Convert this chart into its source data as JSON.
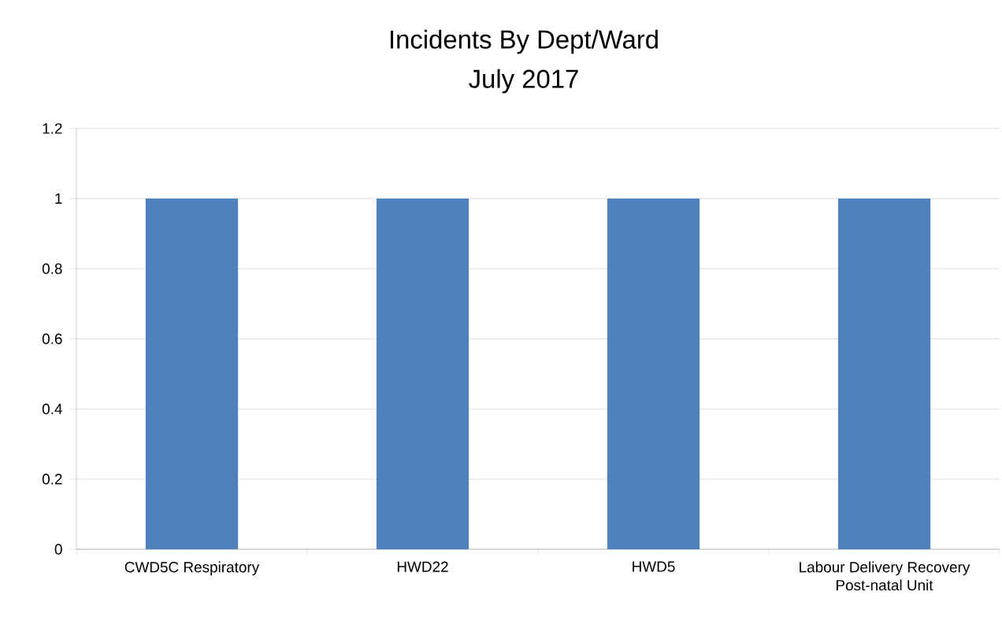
{
  "chart_data": {
    "type": "bar",
    "title": "Incidents By Dept/Ward",
    "subtitle": "July 2017",
    "categories": [
      "CWD5C Respiratory",
      "HWD22",
      "HWD5",
      "Labour Delivery Recovery Post-natal Unit"
    ],
    "values": [
      1,
      1,
      1,
      1
    ],
    "color": "#4f81bd",
    "ylim": [
      0,
      1.2
    ],
    "yticks": [
      0,
      0.2,
      0.4,
      0.6,
      0.8,
      1,
      1.2
    ],
    "grid": "y"
  }
}
